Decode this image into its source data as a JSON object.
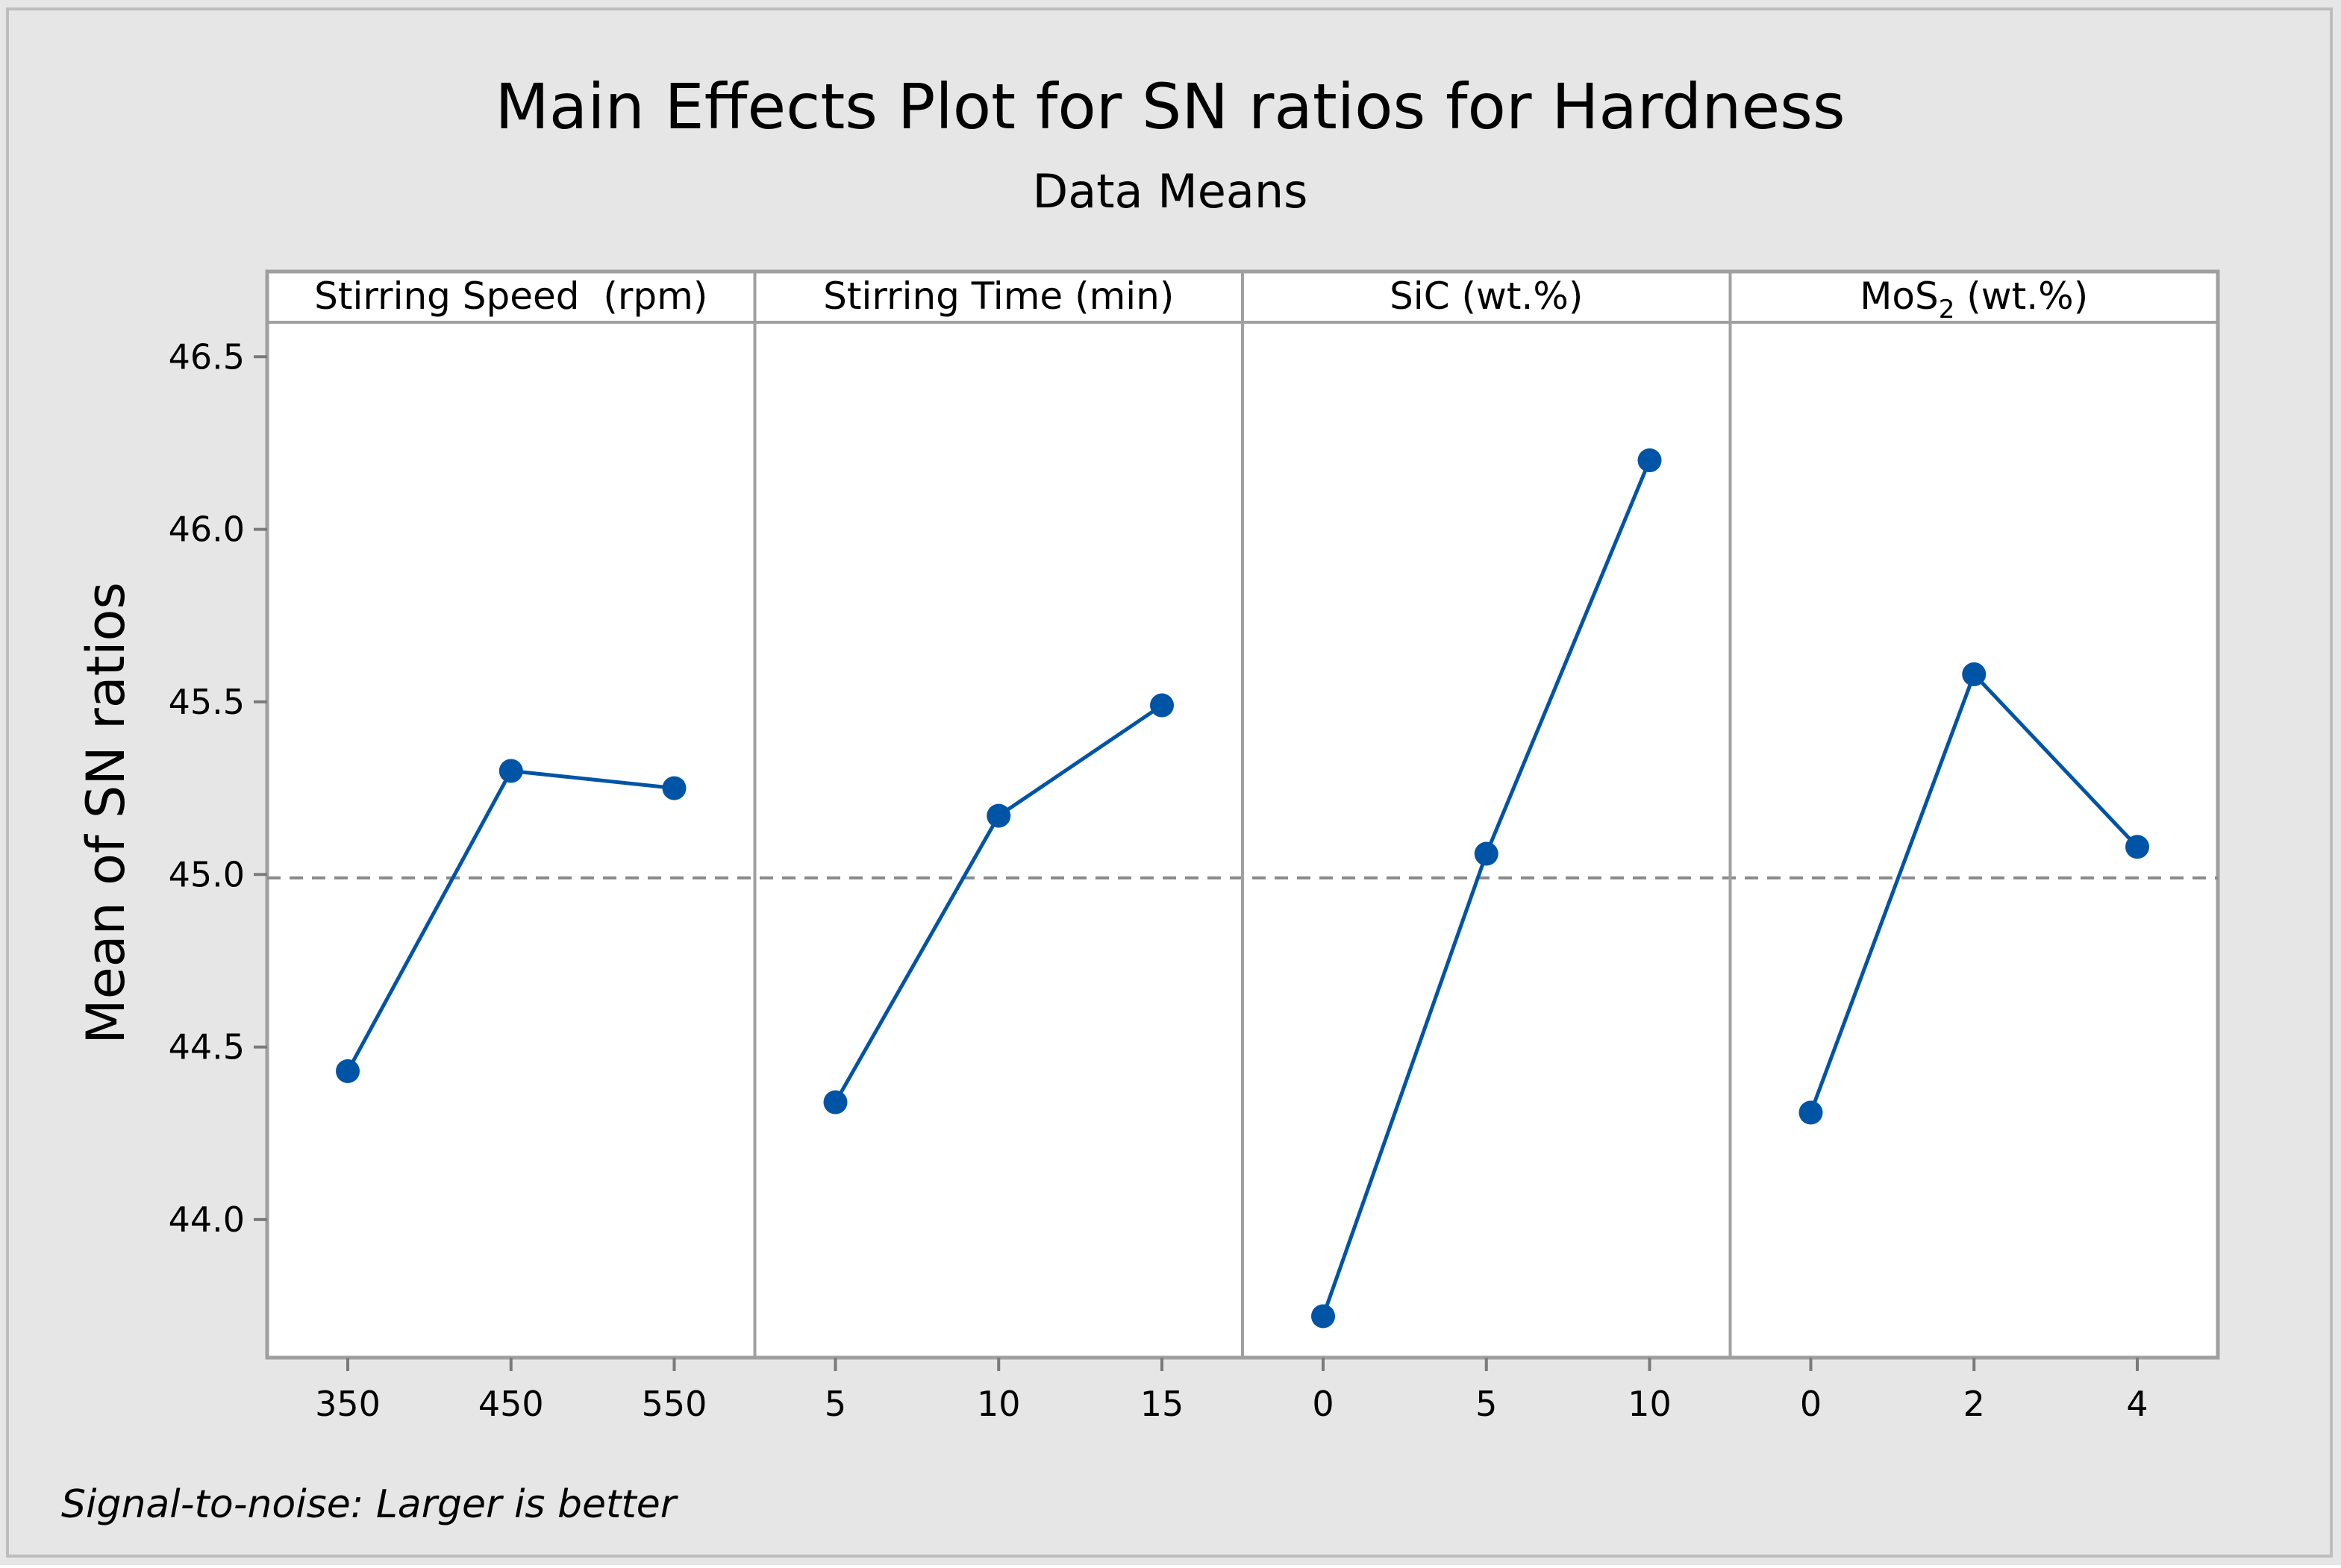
{
  "chart_data": {
    "type": "line",
    "title": "Main Effects Plot for SN ratios for Hardness",
    "subtitle": "Data Means",
    "ylabel": "Mean of SN ratios",
    "footnote": "Signal-to-noise: Larger is better",
    "ylim": [
      43.6,
      46.6
    ],
    "y_ticks": [
      "44.0",
      "44.5",
      "45.0",
      "45.5",
      "46.0",
      "46.5"
    ],
    "reference_mean": 44.99,
    "colors": {
      "series": "#0054a6",
      "reference": "#8a8a8a",
      "frame": "#a0a0a0",
      "background": "#e6e6e6"
    },
    "panels": [
      {
        "name": "Stirring Speed  (rpm)",
        "x": [
          "350",
          "450",
          "550"
        ],
        "y": [
          44.43,
          45.3,
          45.25
        ]
      },
      {
        "name": "Stirring Time (min)",
        "x": [
          "5",
          "10",
          "15"
        ],
        "y": [
          44.34,
          45.17,
          45.49
        ]
      },
      {
        "name": "SiC (wt.%)",
        "x": [
          "0",
          "5",
          "10"
        ],
        "y": [
          43.72,
          45.06,
          46.2
        ]
      },
      {
        "name_main": "MoS",
        "name_sub": "2",
        "name_rest": " (wt.%)",
        "x": [
          "0",
          "2",
          "4"
        ],
        "y": [
          44.31,
          45.58,
          45.08
        ]
      }
    ]
  }
}
